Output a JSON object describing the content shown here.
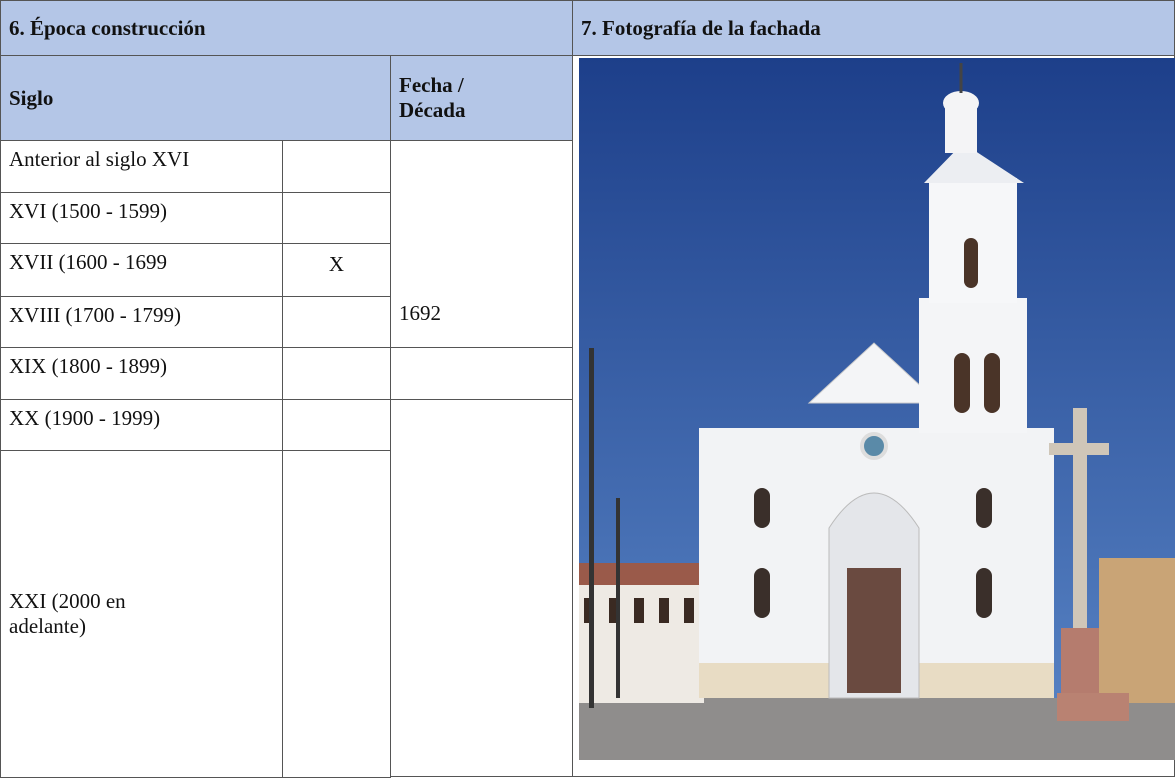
{
  "section6": {
    "title": "6. Época construcción",
    "headers": {
      "siglo": "Siglo",
      "fecha": "Fecha / Década"
    },
    "rows": [
      {
        "siglo": "Anterior al siglo XVI"
      },
      {
        "siglo": "XVI (1500 - 1599)"
      },
      {
        "siglo": "XVII (1600 - 1699",
        "marca": "X"
      },
      {
        "siglo": "XVIII (1700 - 1799)"
      },
      {
        "siglo": "XIX (1800 - 1899)"
      },
      {
        "siglo": "XX (1900 - 1999)"
      },
      {
        "siglo": "XXI (2000 en adelante)"
      }
    ],
    "fecha": "1692"
  },
  "section7": {
    "title": "7. Fotografía de la fachada"
  }
}
